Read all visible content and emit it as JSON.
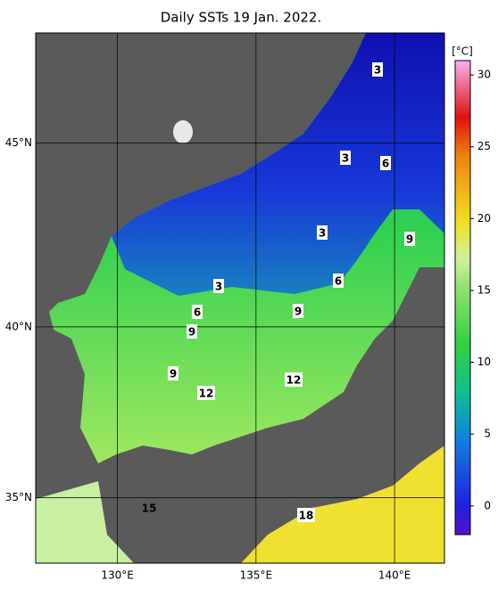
{
  "title": "Daily SSTs 19 Jan. 2022.",
  "map": {
    "lonlim": [
      127.05,
      141.8
    ],
    "latlim": [
      33,
      47.8
    ],
    "lon_ticks": [
      {
        "value": 130,
        "label": "130°E"
      },
      {
        "value": 135,
        "label": "135°E"
      },
      {
        "value": 140,
        "label": "140°E"
      }
    ],
    "lat_ticks": [
      {
        "value": 35,
        "label": "35°N"
      },
      {
        "value": 40,
        "label": "40°N"
      },
      {
        "value": 45,
        "label": "45°N"
      }
    ]
  },
  "contour_labels": [
    "3",
    "3",
    "3",
    "3",
    "6",
    "6",
    "6",
    "9",
    "9",
    "9",
    "9",
    "12",
    "12",
    "18",
    "15"
  ],
  "colorbar": {
    "unit": "[°C]",
    "range": [
      -2,
      31
    ],
    "ticks": [
      0,
      5,
      10,
      15,
      20,
      25,
      30
    ]
  }
}
